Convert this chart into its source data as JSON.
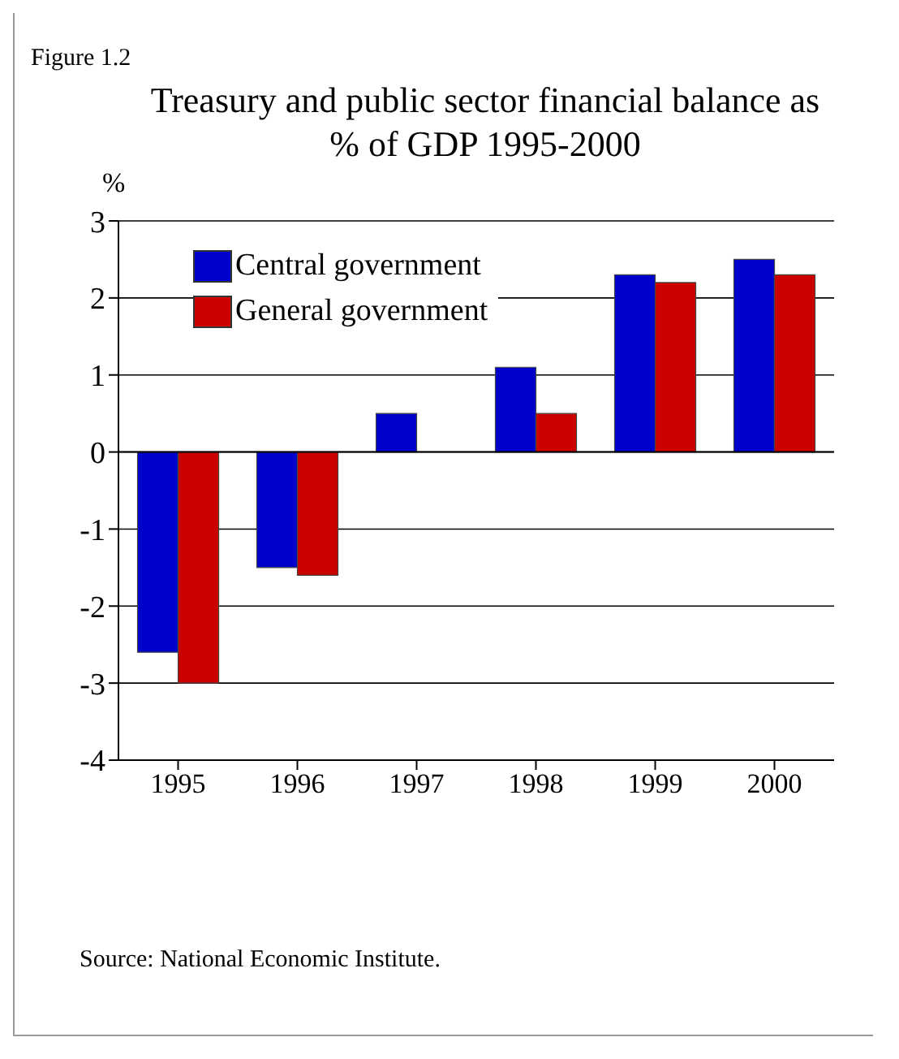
{
  "chart_data": {
    "type": "bar",
    "title": "Treasury and public sector financial balance as % of GDP 1995-2000",
    "ylabel": "%",
    "categories": [
      "1995",
      "1996",
      "1997",
      "1998",
      "1999",
      "2000"
    ],
    "series": [
      {
        "name": "Central government",
        "color": "#0000cc",
        "values": [
          -2.6,
          -1.5,
          0.5,
          1.1,
          2.3,
          2.5
        ]
      },
      {
        "name": "General government",
        "color": "#cc0000",
        "values": [
          -3.0,
          -1.6,
          0.0,
          0.5,
          2.2,
          2.3
        ]
      }
    ],
    "ylim": [
      -4,
      3
    ],
    "yticks": [
      -4,
      -3,
      -2,
      -1,
      0,
      1,
      2,
      3
    ],
    "grid": "y",
    "legend": "top left",
    "annotations": [
      "Figure 1.2",
      "Source: National Economic Institute."
    ]
  }
}
